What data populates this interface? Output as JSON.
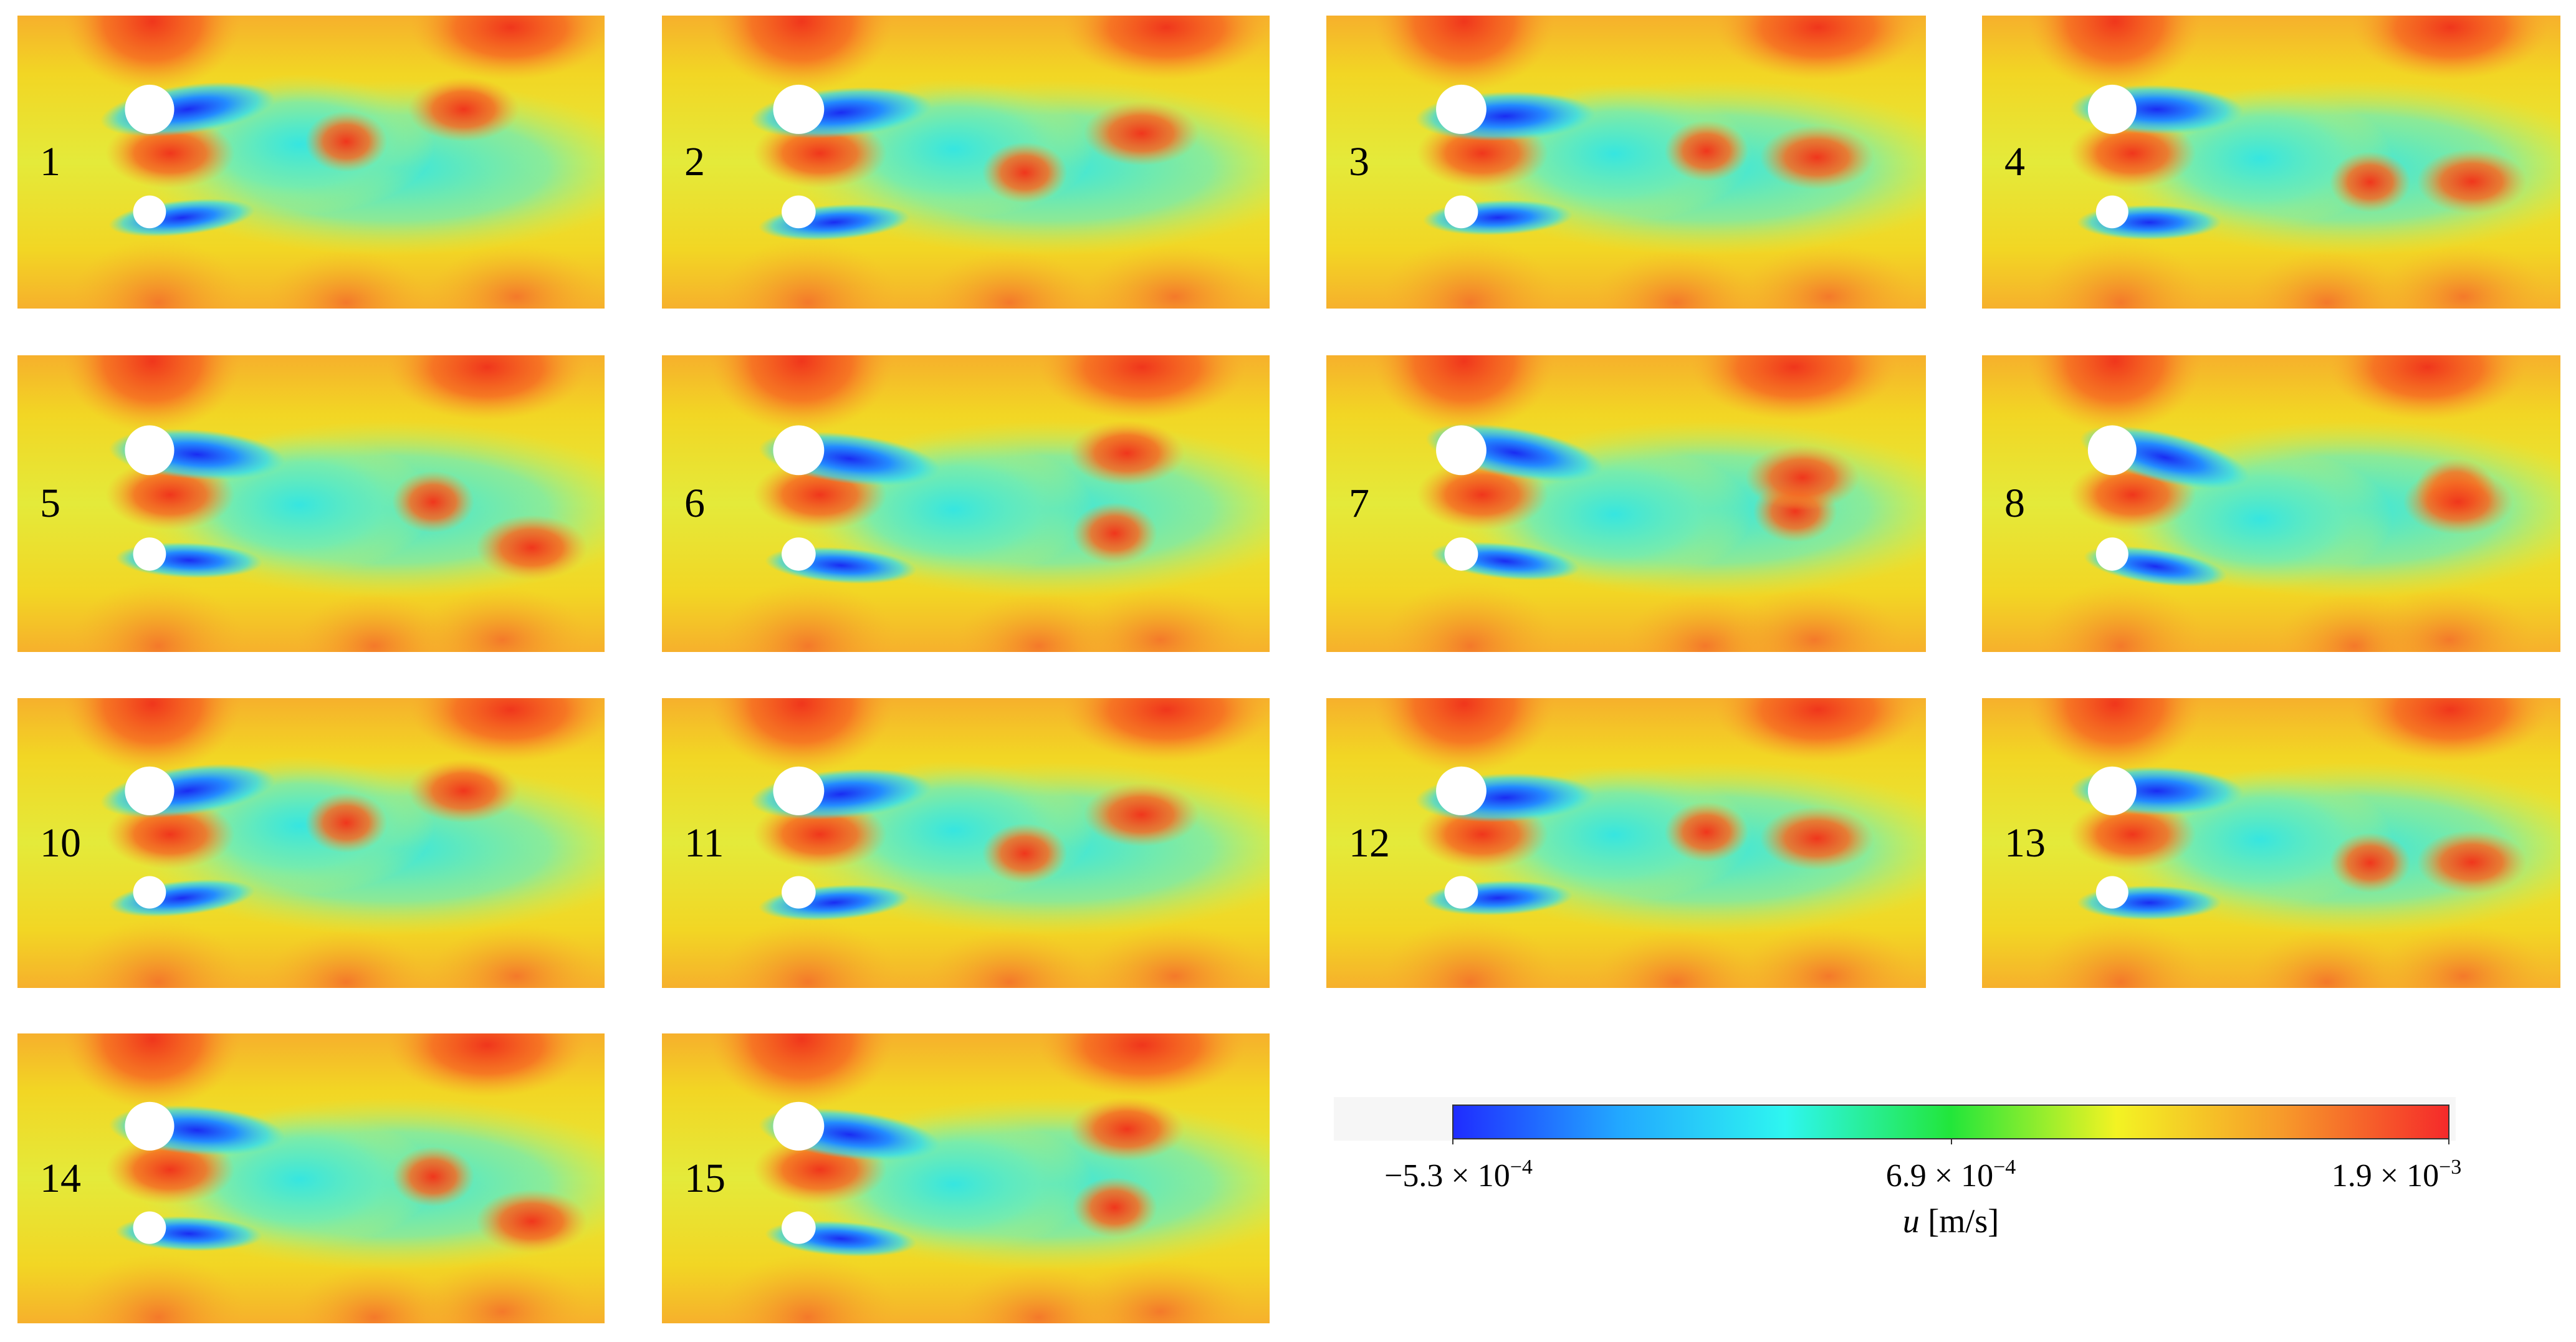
{
  "panels": [
    {
      "label": "1"
    },
    {
      "label": "2"
    },
    {
      "label": "3"
    },
    {
      "label": "4"
    },
    {
      "label": "5"
    },
    {
      "label": "6"
    },
    {
      "label": "7"
    },
    {
      "label": "8"
    },
    {
      "label": "10"
    },
    {
      "label": "11"
    },
    {
      "label": "12"
    },
    {
      "label": "13"
    },
    {
      "label": "14"
    },
    {
      "label": "15"
    }
  ],
  "colorbar": {
    "min_label": "−5.3 × 10",
    "min_exp": "−4",
    "mid_label": "6.9 × 10",
    "mid_exp": "−4",
    "max_label": "1.9 × 10",
    "max_exp": "−3",
    "var": "u",
    "unit": " [m/s]",
    "colors": [
      "#1f2cff",
      "#22a8ff",
      "#2ef6f0",
      "#22e63a",
      "#f3f323",
      "#f79a2a",
      "#f52a2a"
    ]
  }
}
